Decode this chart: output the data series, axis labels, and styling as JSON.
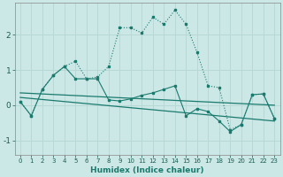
{
  "xlabel": "Humidex (Indice chaleur)",
  "background_color": "#cce8e6",
  "grid_color": "#b8d8d6",
  "line_color": "#1a7a6e",
  "xlim": [
    -0.5,
    23.5
  ],
  "ylim": [
    -1.4,
    2.9
  ],
  "xticks": [
    0,
    1,
    2,
    3,
    4,
    5,
    6,
    7,
    8,
    9,
    10,
    11,
    12,
    13,
    14,
    15,
    16,
    17,
    18,
    19,
    20,
    21,
    22,
    23
  ],
  "yticks": [
    -1,
    0,
    1,
    2
  ],
  "series1_x": [
    0,
    1,
    2,
    3,
    4,
    5,
    6,
    7,
    8,
    9,
    10,
    11,
    12,
    13,
    14,
    15,
    16,
    17,
    18,
    19,
    20,
    21,
    22,
    23
  ],
  "series1_y": [
    0.1,
    -0.3,
    0.45,
    0.85,
    1.1,
    1.25,
    0.75,
    0.8,
    1.1,
    2.2,
    2.2,
    2.05,
    2.5,
    2.3,
    2.7,
    2.3,
    1.5,
    0.55,
    0.5,
    -0.7,
    -0.55,
    0.3,
    0.32,
    -0.38
  ],
  "series2_x": [
    0,
    1,
    2,
    3,
    4,
    5,
    6,
    7,
    8,
    9,
    10,
    11,
    12,
    13,
    14,
    15,
    16,
    17,
    18,
    19,
    20,
    21,
    22,
    23
  ],
  "series2_y": [
    0.1,
    -0.3,
    0.45,
    0.85,
    1.1,
    0.75,
    0.75,
    0.75,
    0.15,
    0.12,
    0.18,
    0.28,
    0.35,
    0.45,
    0.55,
    -0.3,
    -0.1,
    -0.18,
    -0.45,
    -0.75,
    -0.55,
    0.3,
    0.32,
    -0.38
  ],
  "trend1_x": [
    0,
    23
  ],
  "trend1_y": [
    0.35,
    0.0
  ],
  "trend2_x": [
    0,
    23
  ],
  "trend2_y": [
    0.22,
    -0.45
  ]
}
